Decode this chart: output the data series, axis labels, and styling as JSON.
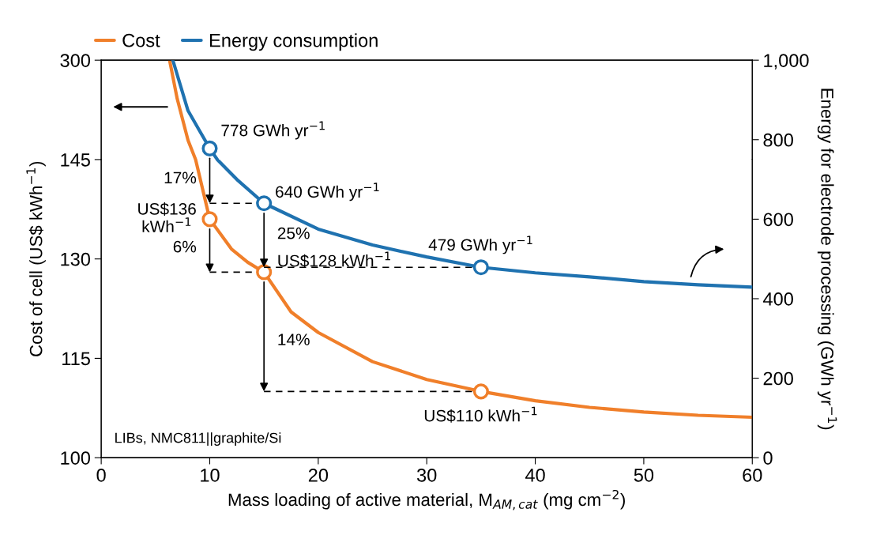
{
  "chart_data": [
    {
      "type": "line",
      "xlim": [
        0,
        60
      ],
      "tick_labels": "y",
      "ylim": [
        145,
        300
      ],
      "yticks": [
        145,
        300
      ],
      "y2lim": [
        750,
        1000
      ],
      "y2ticks": [
        800,
        {
          "value": 1000,
          "label": "1,000"
        }
      ],
      "legend": "top",
      "grid": false,
      "series": [
        {
          "name": "Cost",
          "color": "#f07f2a",
          "x": [
            6.3,
            7,
            8,
            8.7
          ],
          "values": [
            300,
            240,
            175,
            145
          ]
        },
        {
          "name": "Energy consumption",
          "color": "#1f72b0",
          "axis": "y2",
          "x": [
            6.6,
            8,
            10,
            10.7
          ],
          "values": [
            1000,
            873,
            778,
            750
          ]
        },
        {
          "type": "scatter",
          "color": "#1f72b0",
          "axis": "y2",
          "marker": "circle",
          "x": [
            10
          ],
          "values": [
            778
          ],
          "value_labels": [
            "778 GWh yr$^{−1}$"
          ]
        }
      ]
    },
    {
      "type": "line",
      "xlabel": "Mass loading of active material, M$_{AM,cat}$ (mg cm$^{−2}$)",
      "ylabel": "Cost of cell (US$ kWh$^{−1}$)",
      "y2label": "Energy for electrode processing (GWh yr$^{−1}$)",
      "xlim": [
        0,
        60
      ],
      "xticks": [
        0,
        10,
        20,
        30,
        40,
        50,
        60
      ],
      "ylim": [
        100,
        145
      ],
      "yticks": [
        100,
        115,
        130
      ],
      "y2lim": [
        0,
        750
      ],
      "y2ticks": [
        0,
        200,
        400,
        600
      ],
      "grid": false,
      "series": [
        {
          "color": "#f07f2a",
          "x": [
            8.7,
            10,
            12,
            13.5,
            15,
            17.5,
            20,
            25,
            30,
            35,
            40,
            45,
            50,
            55,
            60
          ],
          "values": [
            145,
            136,
            131.5,
            129.5,
            128,
            122,
            118.9,
            114.5,
            111.8,
            110,
            108.6,
            107.6,
            106.9,
            106.4,
            106.1
          ]
        },
        {
          "color": "#1f72b0",
          "axis": "y2",
          "x": [
            10.7,
            12.5,
            15,
            20,
            25,
            30,
            35,
            40,
            45,
            50,
            55,
            60
          ],
          "values": [
            750,
            700,
            640,
            575,
            535,
            505,
            479,
            465,
            455,
            443,
            435,
            429
          ]
        },
        {
          "type": "scatter",
          "color": "#1f72b0",
          "axis": "y2",
          "marker": "circle",
          "x": [
            15,
            35
          ],
          "values": [
            640,
            479
          ],
          "value_labels": [
            "640 GWh yr$^{−1}$",
            "479 GWh yr$^{−1}$"
          ]
        },
        {
          "type": "scatter",
          "color": "#f07f2a",
          "marker": "circle",
          "x": [
            10,
            15,
            35
          ],
          "values": [
            136,
            128,
            110
          ],
          "value_labels": [
            "US$136\nkWh$^{−1}$",
            "US$128 kWh$^{−1}$",
            "US$110 kWh$^{−1}$"
          ]
        }
      ],
      "annotations": [
        {
          "text": "17%",
          "x": 10,
          "y": 138.4
        },
        {
          "text": "25%",
          "x": 15,
          "y": 128.7
        },
        "6%",
        "14%",
        "LIBs, NMC811||graphite/Si"
      ]
    }
  ]
}
